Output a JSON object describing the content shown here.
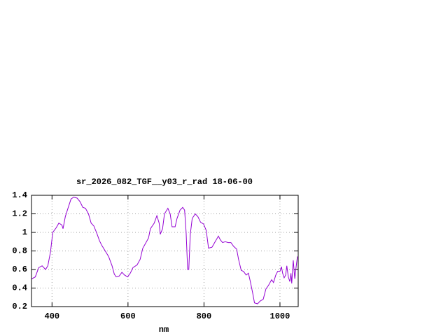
{
  "chart_data": {
    "type": "line",
    "title": "sr_2026_082_TGF__y03_r_rad 18-06-00",
    "x_label": "nm",
    "color": "#9400d3",
    "grid": true,
    "xlim": [
      346,
      1048
    ],
    "ylim": [
      0.2,
      1.4
    ],
    "xticks": [
      400,
      600,
      800,
      1000
    ],
    "yticks": [
      0.2,
      0.4,
      0.6,
      0.8,
      1,
      1.2,
      1.4
    ],
    "x": [
      347,
      356,
      365,
      374,
      383,
      389,
      396,
      402,
      411,
      418,
      426,
      429,
      435,
      442,
      450,
      457,
      466,
      474,
      481,
      488,
      496,
      503,
      510,
      518,
      525,
      531,
      540,
      549,
      558,
      564,
      569,
      577,
      584,
      591,
      599,
      606,
      613,
      624,
      632,
      639,
      646,
      654,
      659,
      669,
      676,
      682,
      685,
      691,
      696,
      705,
      711,
      716,
      724,
      729,
      737,
      744,
      749,
      753,
      757,
      760,
      764,
      769,
      777,
      784,
      791,
      799,
      806,
      812,
      821,
      828,
      838,
      843,
      849,
      856,
      864,
      871,
      878,
      886,
      891,
      898,
      904,
      911,
      917,
      922,
      928,
      933,
      941,
      948,
      956,
      963,
      970,
      978,
      983,
      989,
      994,
      1000,
      1004,
      1007,
      1011,
      1015,
      1018,
      1022,
      1026,
      1029,
      1031,
      1035,
      1039,
      1042,
      1046
    ],
    "values": [
      0.5,
      0.52,
      0.62,
      0.64,
      0.6,
      0.64,
      0.79,
      1.0,
      1.05,
      1.1,
      1.08,
      1.04,
      1.17,
      1.26,
      1.36,
      1.38,
      1.37,
      1.33,
      1.27,
      1.26,
      1.2,
      1.1,
      1.07,
      0.99,
      0.91,
      0.86,
      0.8,
      0.74,
      0.64,
      0.55,
      0.52,
      0.53,
      0.57,
      0.54,
      0.52,
      0.56,
      0.62,
      0.65,
      0.71,
      0.83,
      0.88,
      0.94,
      1.04,
      1.1,
      1.18,
      1.1,
      0.98,
      1.04,
      1.2,
      1.26,
      1.2,
      1.06,
      1.06,
      1.15,
      1.24,
      1.27,
      1.24,
      1.0,
      0.6,
      0.6,
      0.98,
      1.15,
      1.2,
      1.17,
      1.11,
      1.09,
      1.02,
      0.83,
      0.84,
      0.89,
      0.96,
      0.92,
      0.89,
      0.9,
      0.89,
      0.89,
      0.85,
      0.82,
      0.71,
      0.59,
      0.58,
      0.54,
      0.56,
      0.47,
      0.35,
      0.24,
      0.23,
      0.26,
      0.28,
      0.39,
      0.43,
      0.49,
      0.46,
      0.54,
      0.58,
      0.58,
      0.63,
      0.56,
      0.51,
      0.54,
      0.64,
      0.52,
      0.47,
      0.56,
      0.45,
      0.7,
      0.5,
      0.61,
      0.74
    ]
  }
}
